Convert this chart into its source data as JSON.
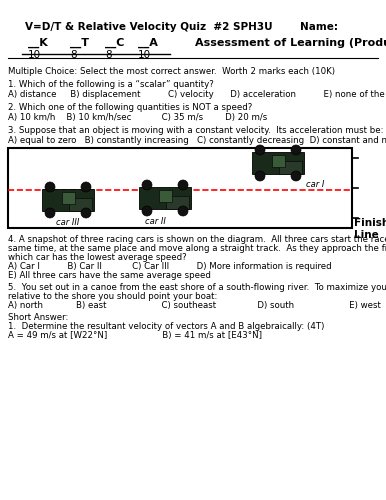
{
  "title_left": "V=D/T & Relative Velocity Quiz  #2 SPH3U",
  "title_right": "Name:",
  "k_label": "__K",
  "t_label": "__T",
  "c_label": "__C",
  "a_label": "__A",
  "k_score": "10",
  "t_score": "8",
  "c_score": "8",
  "a_score": "10",
  "aol": "Assessment of Learning (Product)",
  "mc_header": "Multiple Choice: Select the most correct answer.  Worth 2 marks each (10K)",
  "q1": "1. Which of the following is a “scalar” quantity?",
  "q1_ans": "A) distance     B) displacement          C) velocity      D) acceleration          E) none of the above",
  "q2": "2. Which one of the following quantities is NOT a speed?",
  "q2_ans": "A) 10 km/h    B) 10 km/h/sec           C) 35 m/s        D) 20 m/s",
  "q3": "3. Suppose that an object is moving with a constant velocity.  Its acceleration must be:",
  "q3_ans": "A) equal to zero   B) constantly increasing   C) constantly decreasing  D) constant and non-zero",
  "q4_line1": "4. A snapshot of three racing cars is shown on the diagram.  All three cars start the race at the",
  "q4_line2": "same time, at the same place and move along a straight track.  As they approach the finish line,",
  "q4_line3": "which car has the lowest average speed?",
  "q4_ans1": "A) Car I          B) Car II           C) Car III          D) More information is required",
  "q4_ans2": "E) All three cars have the same average speed",
  "q5_line1": "5.  You set out in a canoe from the east shore of a south-flowing river.  To maximize your velocity",
  "q5_line2": "relative to the shore you should point your boat:",
  "q5_ans": "A) north            B) east                    C) southeast               D) south                    E) west",
  "short_ans_header": "Short Answer:",
  "sa1": "1.  Determine the resultant velocity of vectors A and B algebraically: (4T)",
  "sa1_vals": "A = 49 m/s at [W22°N]                    B) = 41 m/s at [E43°N]",
  "finish_line": "Finish\nLine",
  "bg_color": "#ffffff"
}
